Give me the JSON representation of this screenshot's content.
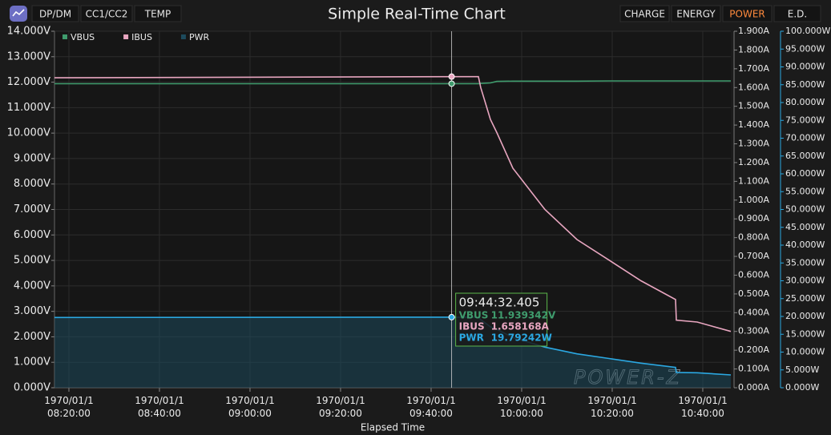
{
  "toolbar": {
    "left_tabs": [
      {
        "label": "DP/DM",
        "active": false
      },
      {
        "label": "CC1/CC2",
        "active": false
      },
      {
        "label": "TEMP",
        "active": false
      }
    ],
    "right_tabs": [
      {
        "label": "CHARGE",
        "active": false
      },
      {
        "label": "ENERGY",
        "active": false
      },
      {
        "label": "POWER",
        "active": true
      },
      {
        "label": "E.D.",
        "active": false
      }
    ]
  },
  "chart_data": {
    "type": "line",
    "title": "Simple Real-Time Chart",
    "x_label": "Elapsed Time",
    "x": [
      "08:16:49",
      "09:44:32",
      "09:50:27",
      "09:50:58",
      "09:53:06",
      "09:54:31",
      "09:58:03",
      "10:05:08",
      "10:12:13",
      "10:19:18",
      "10:26:22",
      "10:33:59",
      "10:34:10",
      "10:38:46",
      "10:46:12"
    ],
    "xlim": [
      "08:16:49",
      "10:46:12"
    ],
    "xticks": [
      "1970/01/1 08:20:00",
      "1970/01/1 08:40:00",
      "1970/01/1 09:00:00",
      "1970/01/1 09:20:00",
      "1970/01/1 09:40:00",
      "1970/01/1 10:00:00",
      "1970/01/1 10:20:00",
      "1970/01/1 10:40:00"
    ],
    "ylim": [
      0,
      14
    ],
    "yticks": [
      {
        "value": 0,
        "label": "0.000V"
      },
      {
        "value": 1,
        "label": "1.000V"
      },
      {
        "value": 2,
        "label": "2.000V"
      },
      {
        "value": 3,
        "label": "3.000V"
      },
      {
        "value": 4,
        "label": "4.000V"
      },
      {
        "value": 5,
        "label": "5.000V"
      },
      {
        "value": 6,
        "label": "6.000V"
      },
      {
        "value": 7,
        "label": "7.000V"
      },
      {
        "value": 8,
        "label": "8.000V"
      },
      {
        "value": 9,
        "label": "9.000V"
      },
      {
        "value": 10,
        "label": "10.000V"
      },
      {
        "value": 11,
        "label": "11.000V"
      },
      {
        "value": 12,
        "label": "12.000V"
      },
      {
        "value": 13,
        "label": "13.000V"
      },
      {
        "value": 14,
        "label": "14.000V"
      }
    ],
    "y2lim": [
      0,
      1.9
    ],
    "y2ticks": [
      {
        "value": 0,
        "label": "0.000A"
      },
      {
        "value": 0.1,
        "label": "0.100A"
      },
      {
        "value": 0.2,
        "label": "0.200A"
      },
      {
        "value": 0.3,
        "label": "0.300A"
      },
      {
        "value": 0.4,
        "label": "0.400A"
      },
      {
        "value": 0.5,
        "label": "0.500A"
      },
      {
        "value": 0.6,
        "label": "0.600A"
      },
      {
        "value": 0.7,
        "label": "0.700A"
      },
      {
        "value": 0.8,
        "label": "0.800A"
      },
      {
        "value": 0.9,
        "label": "0.900A"
      },
      {
        "value": 1,
        "label": "1.000A"
      },
      {
        "value": 1.1,
        "label": "1.100A"
      },
      {
        "value": 1.2,
        "label": "1.200A"
      },
      {
        "value": 1.3,
        "label": "1.300A"
      },
      {
        "value": 1.4,
        "label": "1.400A"
      },
      {
        "value": 1.5,
        "label": "1.500A"
      },
      {
        "value": 1.6,
        "label": "1.600A"
      },
      {
        "value": 1.7,
        "label": "1.700A"
      },
      {
        "value": 1.8,
        "label": "1.800A"
      },
      {
        "value": 1.9,
        "label": "1.900A"
      }
    ],
    "y3lim": [
      0,
      100
    ],
    "y3ticks": [
      {
        "value": 0,
        "label": "0.000W"
      },
      {
        "value": 5,
        "label": "5.000W"
      },
      {
        "value": 10,
        "label": "10.000W"
      },
      {
        "value": 15,
        "label": "15.000W"
      },
      {
        "value": 20,
        "label": "20.000W"
      },
      {
        "value": 25,
        "label": "25.000W"
      },
      {
        "value": 30,
        "label": "30.000W"
      },
      {
        "value": 35,
        "label": "35.000W"
      },
      {
        "value": 40,
        "label": "40.000W"
      },
      {
        "value": 45,
        "label": "45.000W"
      },
      {
        "value": 50,
        "label": "50.000W"
      },
      {
        "value": 55,
        "label": "55.000W"
      },
      {
        "value": 60,
        "label": "60.000W"
      },
      {
        "value": 65,
        "label": "65.000W"
      },
      {
        "value": 70,
        "label": "70.000W"
      },
      {
        "value": 75,
        "label": "75.000W"
      },
      {
        "value": 80,
        "label": "80.000W"
      },
      {
        "value": 85,
        "label": "85.000W"
      },
      {
        "value": 90,
        "label": "90.000W"
      },
      {
        "value": 95,
        "label": "95.000W"
      },
      {
        "value": 100,
        "label": "100.000W"
      }
    ],
    "grid": true,
    "legend": "top-left",
    "series": [
      {
        "name": "VBUS",
        "color": "#3f9c6d",
        "axis": "y",
        "values": [
          11.94,
          11.94,
          11.94,
          11.95,
          11.97,
          12.03,
          12.04,
          12.04,
          12.04,
          12.05,
          12.05,
          12.05,
          12.05,
          12.05,
          12.05
        ]
      },
      {
        "name": "IBUS",
        "color": "#e8a6c0",
        "axis": "y2",
        "values": [
          1.652,
          1.658,
          1.658,
          1.6,
          1.43,
          1.36,
          1.17,
          0.95,
          0.79,
          0.68,
          0.57,
          0.47,
          0.36,
          0.35,
          0.3
        ]
      },
      {
        "name": "PWR",
        "color": "#2ba8e2",
        "fill": "#1d4a5c",
        "axis": "y3",
        "values": [
          19.7,
          19.79,
          19.79,
          19.1,
          17.1,
          16.4,
          14.1,
          11.4,
          9.5,
          8.2,
          6.9,
          5.7,
          4.3,
          4.2,
          3.6
        ]
      }
    ],
    "crosshair": {
      "time_label": "09:44:32.405",
      "readouts": [
        "11.939342V",
        "1.658168A",
        "19.79242W"
      ]
    },
    "watermark": "POWER-Z"
  }
}
